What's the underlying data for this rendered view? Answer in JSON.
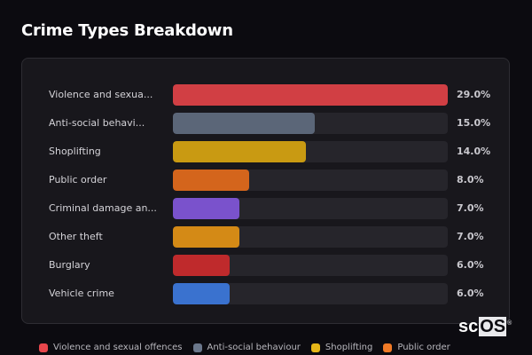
{
  "header": {
    "title": "Crime Types Breakdown"
  },
  "chart_data": {
    "type": "bar",
    "orientation": "horizontal",
    "title": "Crime Types Breakdown",
    "xlabel": "",
    "ylabel": "",
    "value_format": "percent",
    "max_value": 29.0,
    "categories": [
      "Violence and sexual offences",
      "Anti-social behaviour",
      "Shoplifting",
      "Public order",
      "Criminal damage and arson",
      "Other theft",
      "Burglary",
      "Vehicle crime"
    ],
    "display_labels": [
      "Violence and sexua...",
      "Anti-social behavi...",
      "Shoplifting",
      "Public order",
      "Criminal damage an...",
      "Other theft",
      "Burglary",
      "Vehicle crime"
    ],
    "values": [
      29.0,
      15.0,
      14.0,
      8.0,
      7.0,
      7.0,
      6.0,
      6.0
    ],
    "value_labels": [
      "29.0%",
      "15.0%",
      "14.0%",
      "8.0%",
      "7.0%",
      "7.0%",
      "6.0%",
      "6.0%"
    ],
    "colors": [
      "#d13f44",
      "#5b6678",
      "#c99a12",
      "#d4651c",
      "#7a52cc",
      "#d48a16",
      "#bf2a2c",
      "#3a72cf"
    ],
    "legend": [
      {
        "label": "Violence and sexual offences",
        "color": "#e8464c"
      },
      {
        "label": "Anti-social behaviour",
        "color": "#6b778b"
      },
      {
        "label": "Shoplifting",
        "color": "#e6b618"
      },
      {
        "label": "Public order",
        "color": "#f07a26"
      }
    ],
    "legend_position": "bottom",
    "grid": false
  },
  "rows": [
    {
      "label": "Violence and sexua...",
      "value": "29.0%"
    },
    {
      "label": "Anti-social behavi...",
      "value": "15.0%"
    },
    {
      "label": "Shoplifting",
      "value": "14.0%"
    },
    {
      "label": "Public order",
      "value": "8.0%"
    },
    {
      "label": "Criminal damage an...",
      "value": "7.0%"
    },
    {
      "label": "Other theft",
      "value": "7.0%"
    },
    {
      "label": "Burglary",
      "value": "6.0%"
    },
    {
      "label": "Vehicle crime",
      "value": "6.0%"
    }
  ],
  "legend": [
    {
      "label": "Violence and sexual offences"
    },
    {
      "label": "Anti-social behaviour"
    },
    {
      "label": "Shoplifting"
    },
    {
      "label": "Public order"
    }
  ],
  "logo": {
    "prefix": "sc",
    "highlight": "OS",
    "mark": "®"
  }
}
